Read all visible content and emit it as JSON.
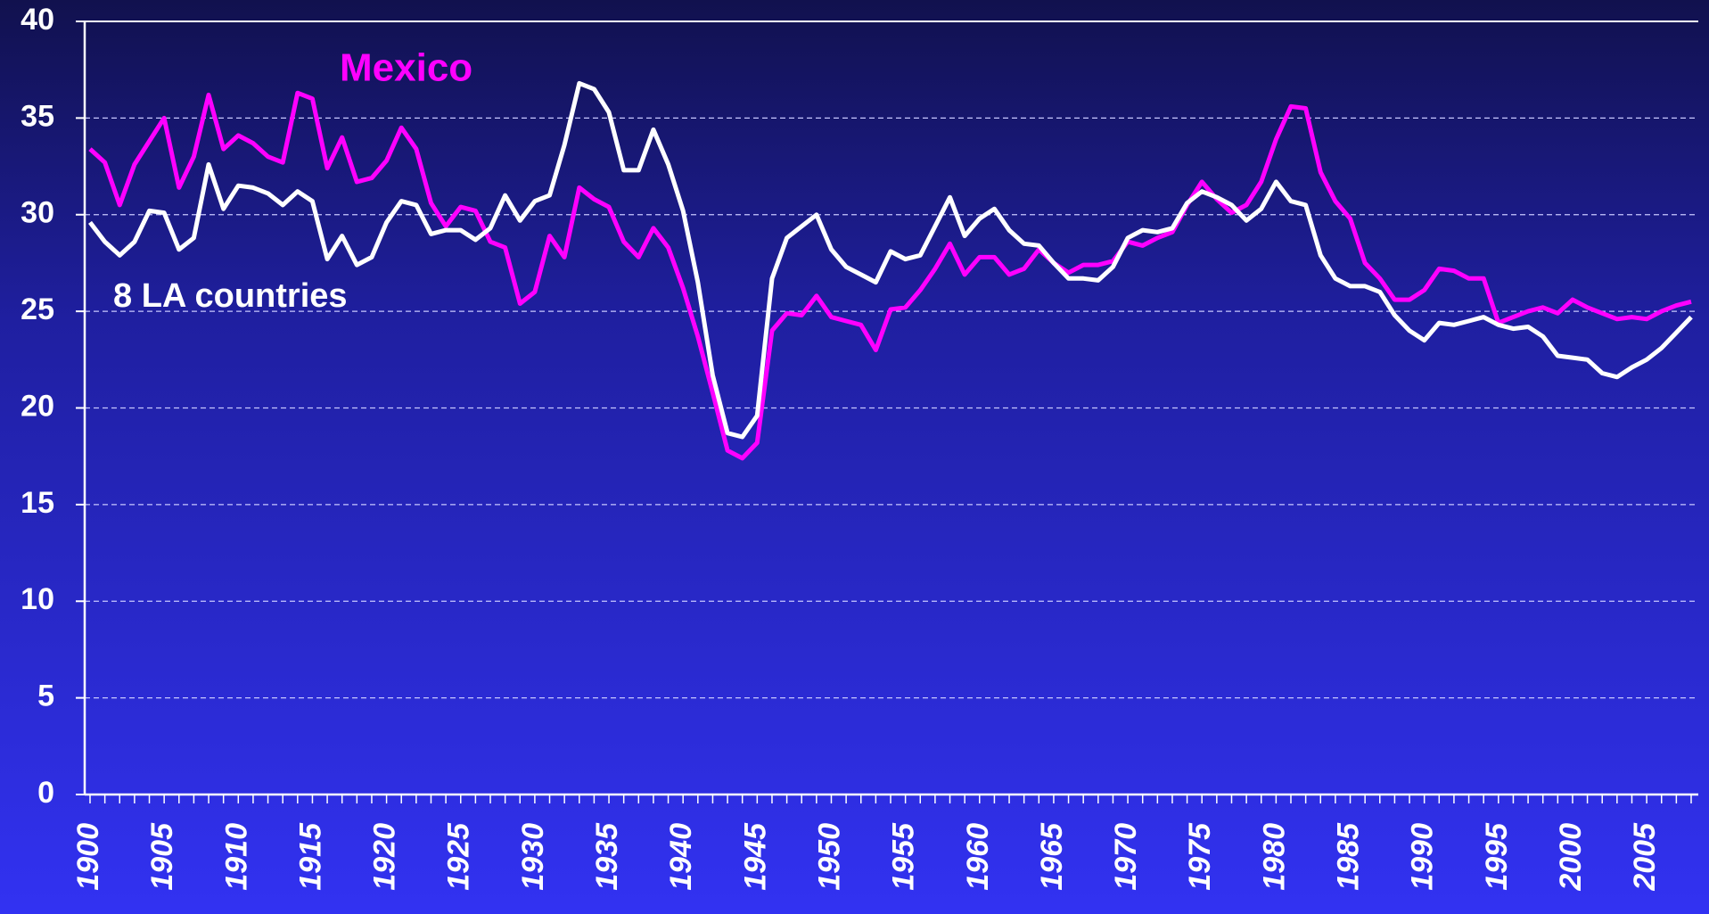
{
  "chart_data": {
    "type": "line",
    "x": [
      1900,
      1901,
      1902,
      1903,
      1904,
      1905,
      1906,
      1907,
      1908,
      1909,
      1910,
      1911,
      1912,
      1913,
      1914,
      1915,
      1916,
      1917,
      1918,
      1919,
      1920,
      1921,
      1922,
      1923,
      1924,
      1925,
      1926,
      1927,
      1928,
      1929,
      1930,
      1931,
      1932,
      1933,
      1934,
      1935,
      1936,
      1937,
      1938,
      1939,
      1940,
      1941,
      1942,
      1943,
      1944,
      1945,
      1946,
      1947,
      1948,
      1949,
      1950,
      1951,
      1952,
      1953,
      1954,
      1955,
      1956,
      1957,
      1958,
      1959,
      1960,
      1961,
      1962,
      1963,
      1964,
      1965,
      1966,
      1967,
      1968,
      1969,
      1970,
      1971,
      1972,
      1973,
      1974,
      1975,
      1976,
      1977,
      1978,
      1979,
      1980,
      1981,
      1982,
      1983,
      1984,
      1985,
      1986,
      1987,
      1988,
      1989,
      1990,
      1991,
      1992,
      1993,
      1994,
      1995,
      1996,
      1997,
      1998,
      1999,
      2000,
      2001,
      2002,
      2003,
      2004,
      2005,
      2006,
      2007,
      2008
    ],
    "series": [
      {
        "name": "Mexico",
        "color": "#ff00ff",
        "values": [
          33.4,
          32.7,
          30.5,
          32.6,
          33.8,
          35.0,
          31.4,
          33.0,
          36.2,
          33.4,
          34.1,
          33.7,
          33.0,
          32.7,
          36.3,
          36.0,
          32.4,
          34.0,
          31.7,
          31.9,
          32.8,
          34.5,
          33.4,
          30.6,
          29.4,
          30.4,
          30.2,
          28.6,
          28.3,
          25.4,
          26.0,
          28.9,
          27.8,
          31.4,
          30.8,
          30.4,
          28.6,
          27.8,
          29.3,
          28.3,
          26.2,
          23.7,
          20.8,
          17.8,
          17.4,
          18.2,
          24.0,
          24.9,
          24.8,
          25.8,
          24.7,
          24.5,
          24.3,
          23.0,
          25.1,
          25.2,
          26.1,
          27.2,
          28.5,
          26.9,
          27.8,
          27.8,
          26.9,
          27.2,
          28.2,
          27.5,
          27.0,
          27.4,
          27.4,
          27.6,
          28.6,
          28.4,
          28.8,
          29.1,
          30.5,
          31.7,
          30.8,
          30.1,
          30.5,
          31.7,
          33.9,
          35.6,
          35.5,
          32.2,
          30.7,
          29.8,
          27.5,
          26.7,
          25.6,
          25.6,
          26.1,
          27.2,
          27.1,
          26.7,
          26.7,
          24.4,
          24.7,
          25.0,
          25.2,
          24.9,
          25.6,
          25.2,
          24.9,
          24.6,
          24.7,
          24.6,
          25.0,
          25.3,
          25.5
        ]
      },
      {
        "name": "8 LA countries",
        "color": "#ffffff",
        "values": [
          29.6,
          28.6,
          27.9,
          28.6,
          30.2,
          30.1,
          28.2,
          28.8,
          32.6,
          30.3,
          31.5,
          31.4,
          31.1,
          30.5,
          31.2,
          30.7,
          27.7,
          28.9,
          27.4,
          27.8,
          29.6,
          30.7,
          30.5,
          29.0,
          29.2,
          29.2,
          28.7,
          29.3,
          31.0,
          29.7,
          30.7,
          31.0,
          33.6,
          36.8,
          36.5,
          35.3,
          32.3,
          32.3,
          34.4,
          32.6,
          30.2,
          26.5,
          21.7,
          18.7,
          18.5,
          19.6,
          26.7,
          28.8,
          29.4,
          30.0,
          28.2,
          27.3,
          26.9,
          26.5,
          28.1,
          27.7,
          27.9,
          29.4,
          30.9,
          28.9,
          29.8,
          30.3,
          29.2,
          28.5,
          28.4,
          27.5,
          26.7,
          26.7,
          26.6,
          27.3,
          28.8,
          29.2,
          29.1,
          29.3,
          30.6,
          31.2,
          30.9,
          30.5,
          29.7,
          30.3,
          31.7,
          30.7,
          30.5,
          27.9,
          26.7,
          26.3,
          26.3,
          26.0,
          24.8,
          24.0,
          23.5,
          24.4,
          24.3,
          24.5,
          24.7,
          24.3,
          24.1,
          24.2,
          23.7,
          22.7,
          22.6,
          22.5,
          21.8,
          21.6,
          22.1,
          22.5,
          23.1,
          23.9,
          24.7
        ]
      }
    ],
    "xlim": [
      1900,
      2008
    ],
    "xticks": [
      1900,
      1905,
      1910,
      1915,
      1920,
      1925,
      1930,
      1935,
      1940,
      1945,
      1950,
      1955,
      1960,
      1965,
      1970,
      1975,
      1980,
      1985,
      1990,
      1995,
      2000,
      2005
    ],
    "ylim": [
      0,
      40
    ],
    "yticks": [
      0,
      5,
      10,
      15,
      20,
      25,
      30,
      35,
      40
    ],
    "grid": true
  }
}
